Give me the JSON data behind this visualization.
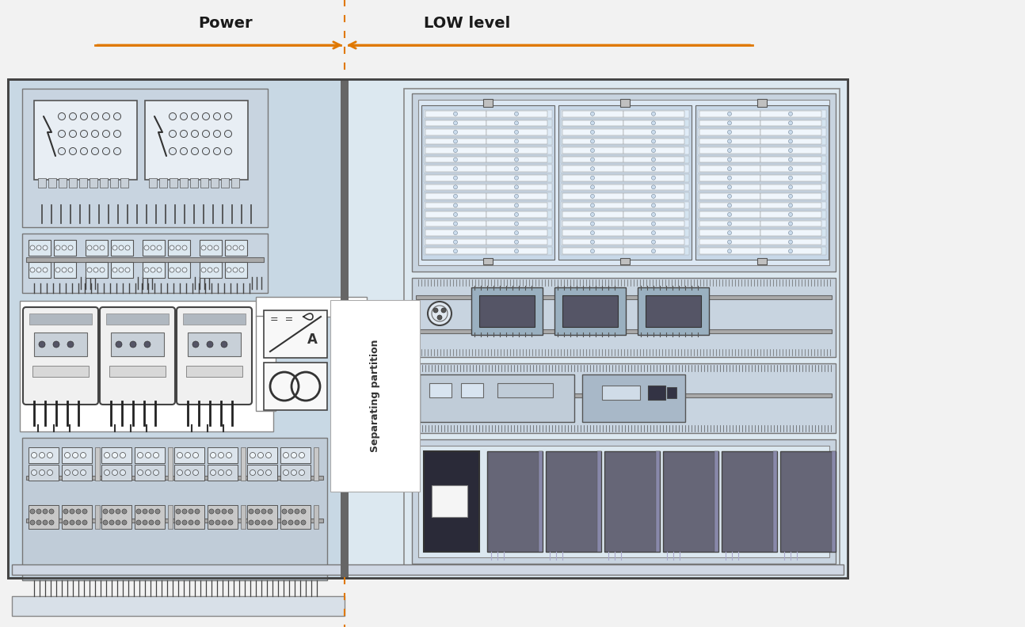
{
  "bg_color": "#f2f2f2",
  "panel_bg": "#c8d8e4",
  "panel_outline": "#444444",
  "left_bg": "#c8d8e4",
  "right_bg": "#dce8f0",
  "partition_color": "#555555",
  "orange": "#e07800",
  "title_power": "Power",
  "title_low": "LOW level",
  "sep_text": "Separating partition",
  "white": "#ffffff",
  "light_blue": "#dce8f2",
  "med_blue": "#c0d0e0",
  "component_face": "#e8eef4",
  "dark": "#333333",
  "mid_gray": "#888888",
  "light_gray": "#cccccc"
}
